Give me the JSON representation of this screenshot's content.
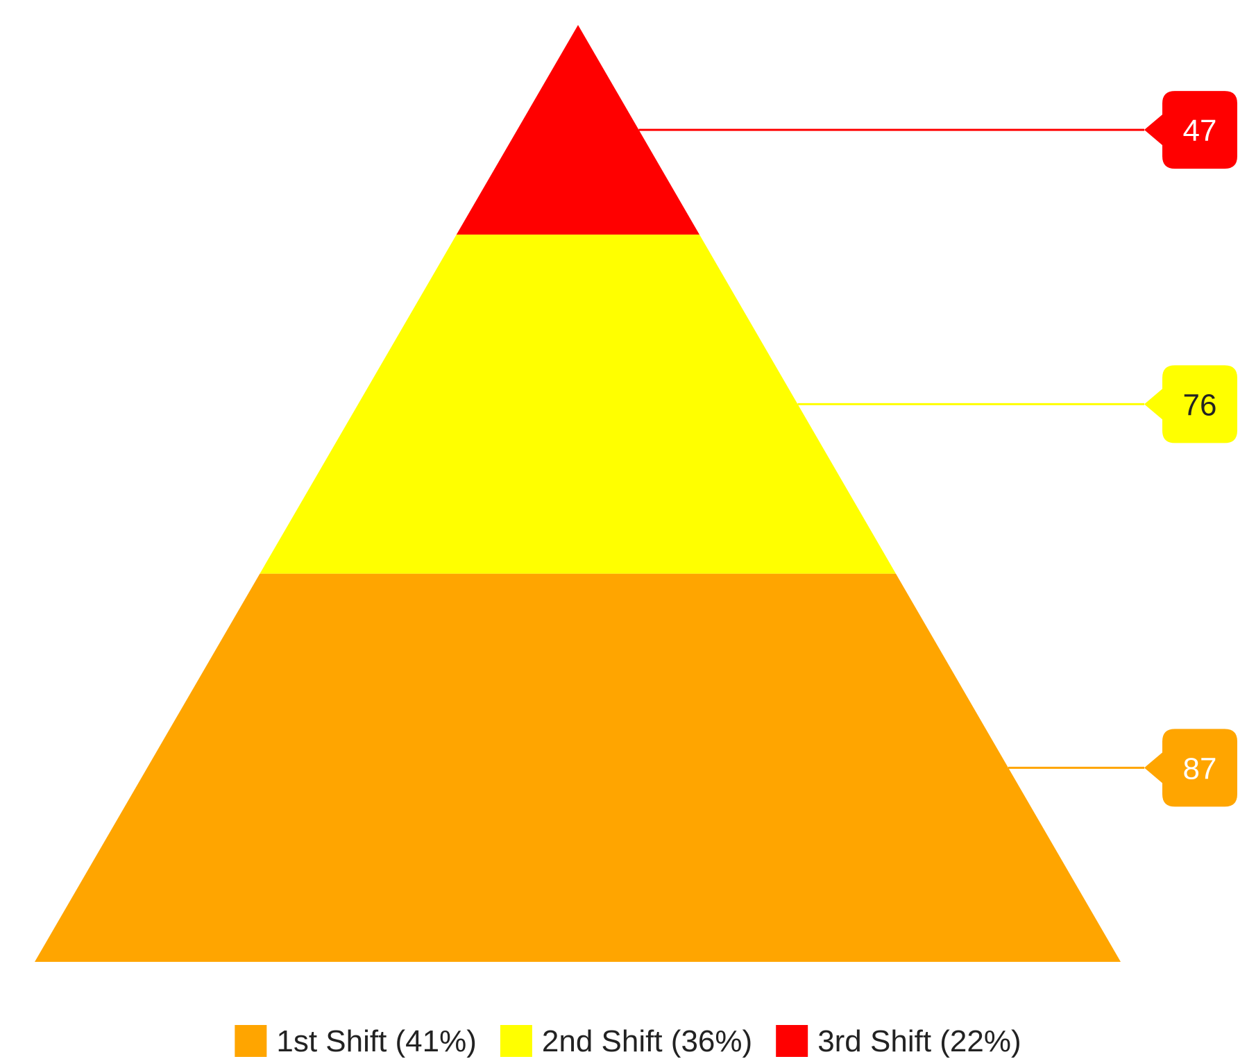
{
  "chart_data": {
    "type": "pyramid",
    "title": "",
    "legend_position": "bottom",
    "series": [
      {
        "name": "1st Shift",
        "value": 87,
        "percent_label": "(41%)",
        "color": "#FFA500",
        "label_text_color": "#ffffff"
      },
      {
        "name": "2nd Shift",
        "value": 76,
        "percent_label": "(36%)",
        "color": "#FFFF00",
        "label_text_color": "#222222"
      },
      {
        "name": "3rd Shift",
        "value": 47,
        "percent_label": "(22%)",
        "color": "#FF0000",
        "label_text_color": "#ffffff"
      }
    ]
  }
}
